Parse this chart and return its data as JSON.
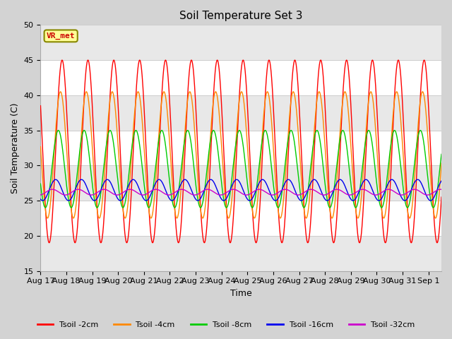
{
  "title": "Soil Temperature Set 3",
  "xlabel": "Time",
  "ylabel": "Soil Temperature (C)",
  "ylim": [
    15,
    50
  ],
  "xlim_days": [
    0,
    15.5
  ],
  "tick_labels": [
    "Aug 17",
    "Aug 18",
    "Aug 19",
    "Aug 20",
    "Aug 21",
    "Aug 22",
    "Aug 23",
    "Aug 24",
    "Aug 25",
    "Aug 26",
    "Aug 27",
    "Aug 28",
    "Aug 29",
    "Aug 30",
    "Aug 31",
    "Sep 1"
  ],
  "annotation_text": "VR_met",
  "annotation_color": "#cc0000",
  "annotation_bg": "#ffff99",
  "annotation_border": "#888800",
  "background_color": "#d3d3d3",
  "band_color_light": "#ffffff",
  "band_color_dark": "#e8e8e8",
  "yticks": [
    15,
    20,
    25,
    30,
    35,
    40,
    45,
    50
  ],
  "series": [
    {
      "label": "Tsoil -2cm",
      "color": "#ff0000",
      "amplitude": 13.0,
      "mean": 32.0,
      "phase_hours": 0.0
    },
    {
      "label": "Tsoil -4cm",
      "color": "#ff8800",
      "amplitude": 9.0,
      "mean": 31.5,
      "phase_hours": 1.5
    },
    {
      "label": "Tsoil -8cm",
      "color": "#00cc00",
      "amplitude": 5.5,
      "mean": 29.5,
      "phase_hours": 3.5
    },
    {
      "label": "Tsoil -16cm",
      "color": "#0000ee",
      "amplitude": 1.5,
      "mean": 26.5,
      "phase_hours": 6.0
    },
    {
      "label": "Tsoil -32cm",
      "color": "#cc00cc",
      "amplitude": 0.4,
      "mean": 26.2,
      "phase_hours": 9.0
    }
  ]
}
